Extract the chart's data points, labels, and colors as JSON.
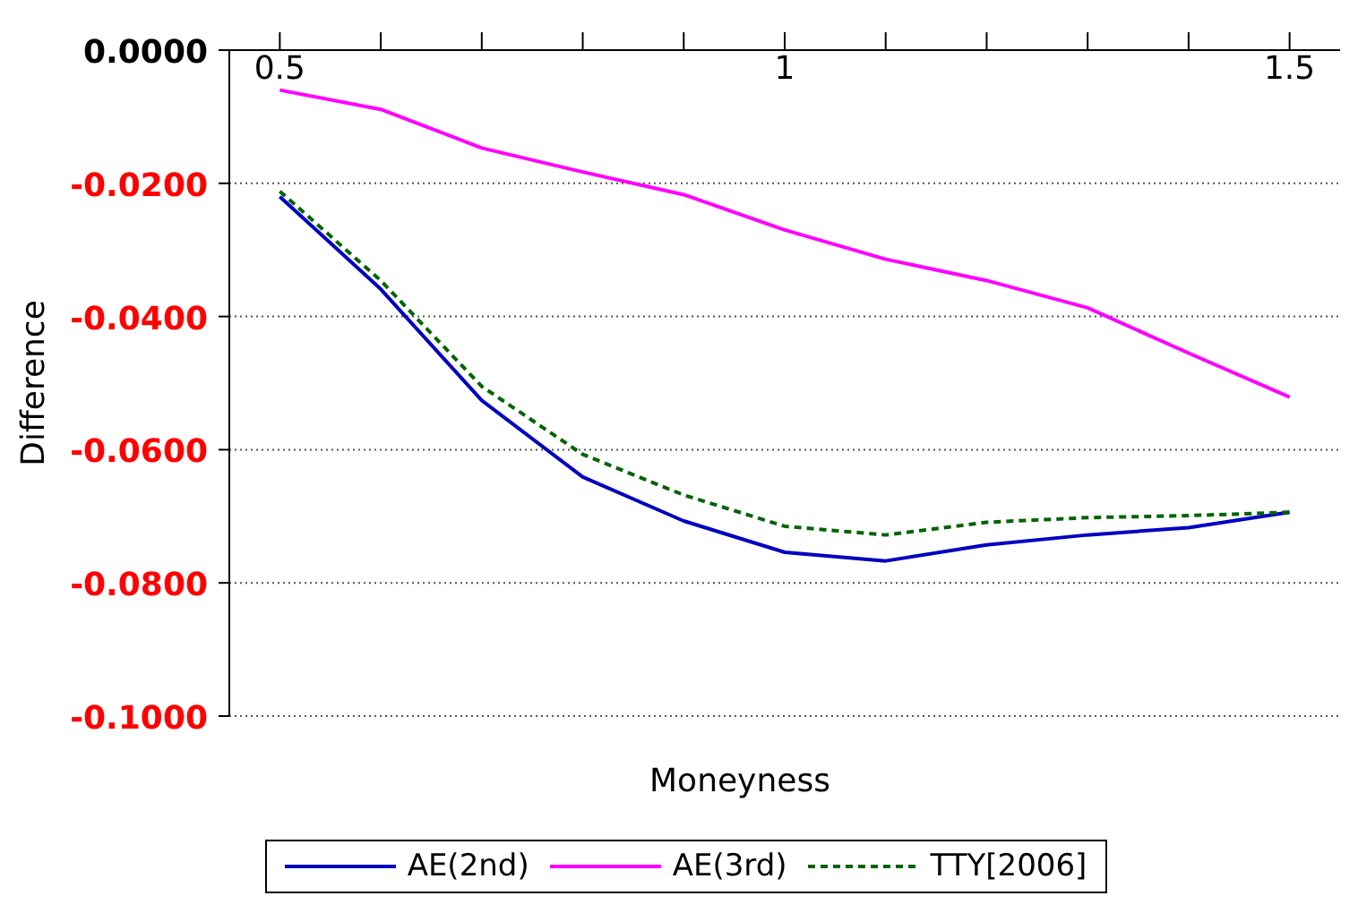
{
  "chart_data": {
    "type": "line",
    "xlabel": "Moneyness",
    "ylabel": "Difference",
    "x": [
      0.5,
      0.6,
      0.7,
      0.8,
      0.9,
      1.0,
      1.1,
      1.2,
      1.3,
      1.4,
      1.5
    ],
    "series": [
      {
        "name": "AE(2nd)",
        "color": "#0000c0",
        "line_style": "solid",
        "values": [
          -0.022,
          -0.0359,
          -0.0526,
          -0.0641,
          -0.0707,
          -0.0754,
          -0.0767,
          -0.0743,
          -0.0728,
          -0.0717,
          -0.0694
        ]
      },
      {
        "name": "AE(3rd)",
        "color": "#ff00ff",
        "line_style": "solid",
        "values": [
          -0.006,
          -0.0089,
          -0.0147,
          -0.0183,
          -0.0217,
          -0.027,
          -0.0314,
          -0.0346,
          -0.0387,
          -0.0455,
          -0.0521
        ]
      },
      {
        "name": "TTY[2006]",
        "color": "#006400",
        "line_style": "dashed",
        "values": [
          -0.0212,
          -0.0346,
          -0.0505,
          -0.0607,
          -0.0668,
          -0.0715,
          -0.0728,
          -0.0709,
          -0.0702,
          -0.0699,
          -0.0694
        ]
      }
    ],
    "xlim": [
      0.45,
      1.55
    ],
    "xticks": [
      0.5,
      {
        "value": 0.6,
        "label": null
      },
      {
        "value": 0.7,
        "label": null
      },
      {
        "value": 0.8,
        "label": null
      },
      {
        "value": 0.9,
        "label": null
      },
      1,
      {
        "value": 1.1,
        "label": null
      },
      {
        "value": 1.2,
        "label": null
      },
      {
        "value": 1.3,
        "label": null
      },
      {
        "value": 1.4,
        "label": null
      },
      1.5
    ],
    "ylim": [
      -0.1,
      0
    ],
    "yticks": [
      {
        "value": 0,
        "label": "0.0000"
      },
      {
        "value": -0.02,
        "label": "-0.0200"
      },
      {
        "value": -0.04,
        "label": "-0.0400"
      },
      {
        "value": -0.06,
        "label": "-0.0600"
      },
      {
        "value": -0.08,
        "label": "-0.0800"
      },
      {
        "value": -0.1,
        "label": "-0.1000"
      }
    ],
    "grid": "y",
    "legend": "bottom",
    "marker": "none"
  }
}
